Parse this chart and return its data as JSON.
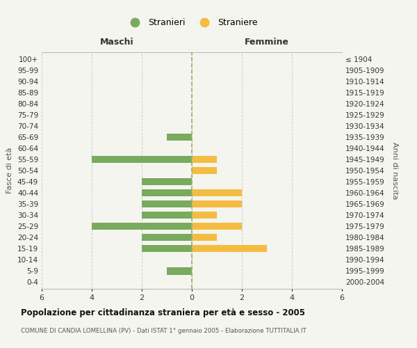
{
  "age_groups": [
    "0-4",
    "5-9",
    "10-14",
    "15-19",
    "20-24",
    "25-29",
    "30-34",
    "35-39",
    "40-44",
    "45-49",
    "50-54",
    "55-59",
    "60-64",
    "65-69",
    "70-74",
    "75-79",
    "80-84",
    "85-89",
    "90-94",
    "95-99",
    "100+"
  ],
  "birth_years": [
    "2000-2004",
    "1995-1999",
    "1990-1994",
    "1985-1989",
    "1980-1984",
    "1975-1979",
    "1970-1974",
    "1965-1969",
    "1960-1964",
    "1955-1959",
    "1950-1954",
    "1945-1949",
    "1940-1944",
    "1935-1939",
    "1930-1934",
    "1925-1929",
    "1920-1924",
    "1915-1919",
    "1910-1914",
    "1905-1909",
    "≤ 1904"
  ],
  "males": [
    0,
    1,
    0,
    2,
    2,
    4,
    2,
    2,
    2,
    2,
    0,
    4,
    0,
    1,
    0,
    0,
    0,
    0,
    0,
    0,
    0
  ],
  "females": [
    0,
    0,
    0,
    3,
    1,
    2,
    1,
    2,
    2,
    0,
    1,
    1,
    0,
    0,
    0,
    0,
    0,
    0,
    0,
    0,
    0
  ],
  "male_color": "#7aaa5e",
  "female_color": "#f5bc42",
  "male_label": "Stranieri",
  "female_label": "Straniere",
  "title": "Popolazione per cittadinanza straniera per età e sesso - 2005",
  "subtitle": "COMUNE DI CANDIA LOMELLINA (PV) - Dati ISTAT 1° gennaio 2005 - Elaborazione TUTTITALIA.IT",
  "xlabel_left": "Maschi",
  "xlabel_right": "Femmine",
  "ylabel_left": "Fasce di età",
  "ylabel_right": "Anni di nascita",
  "xlim": 6,
  "background_color": "#f5f5f0",
  "grid_color": "#cccccc"
}
